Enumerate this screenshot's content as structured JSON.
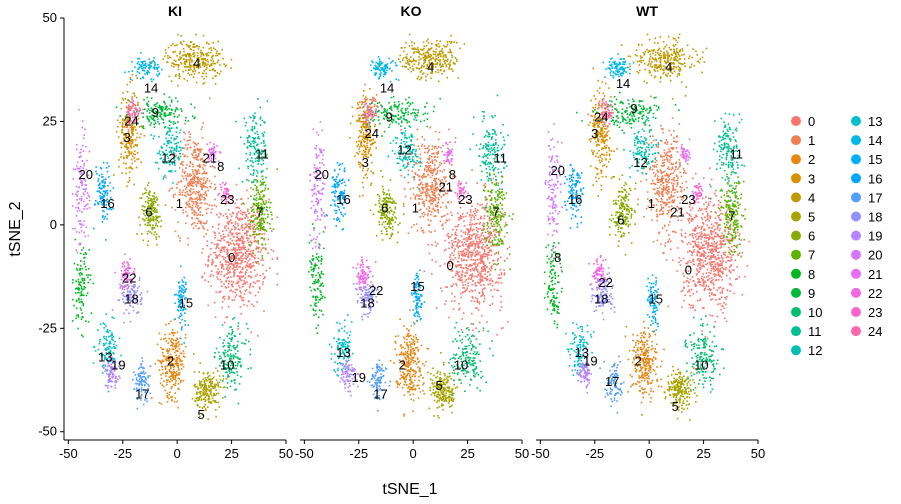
{
  "chart_data": {
    "type": "scatter",
    "xlabel": "tSNE_1",
    "ylabel": "tSNE_2",
    "xlim": [
      -52,
      50
    ],
    "ylim": [
      -52,
      50
    ],
    "x_ticks": [
      -50,
      -25,
      0,
      25,
      50
    ],
    "y_ticks": [
      -50,
      -25,
      0,
      25,
      50
    ],
    "x_tick_labels": [
      "-50",
      "-25",
      "0",
      "25",
      "50"
    ],
    "y_tick_labels": [
      "-50",
      "-25",
      "0",
      "25",
      "50"
    ],
    "grid": false,
    "legend_placement": "right",
    "legend_columns": 2,
    "panels": [
      {
        "title": "KI"
      },
      {
        "title": "KO"
      },
      {
        "title": "WT"
      }
    ],
    "clusters": [
      {
        "name": "0",
        "color": "#F8766D",
        "center": [
          28,
          -7
        ],
        "spread": [
          11,
          11
        ],
        "n": 700
      },
      {
        "name": "1",
        "color": "#F07E4F",
        "center": [
          8,
          10
        ],
        "spread": [
          7,
          10
        ],
        "n": 380
      },
      {
        "name": "2",
        "color": "#E68613",
        "center": [
          -2,
          -33
        ],
        "spread": [
          5,
          7
        ],
        "n": 260
      },
      {
        "name": "3",
        "color": "#D89000",
        "center": [
          -22,
          22
        ],
        "spread": [
          4,
          9
        ],
        "n": 230
      },
      {
        "name": "4",
        "color": "#C09B00",
        "center": [
          8,
          40
        ],
        "spread": [
          11,
          4
        ],
        "n": 280
      },
      {
        "name": "5",
        "color": "#A9A400",
        "center": [
          14,
          -40
        ],
        "spread": [
          5,
          4
        ],
        "n": 200
      },
      {
        "name": "6",
        "color": "#8AAB00",
        "center": [
          -12,
          3
        ],
        "spread": [
          4,
          5
        ],
        "n": 170
      },
      {
        "name": "7",
        "color": "#5BB300",
        "center": [
          38,
          3
        ],
        "spread": [
          4,
          8
        ],
        "n": 190
      },
      {
        "name": "8",
        "color": "#00B81F",
        "center": [
          -44,
          -15
        ],
        "spread": [
          3,
          8
        ],
        "n": 110
      },
      {
        "name": "9",
        "color": "#00BA38",
        "center": [
          -8,
          27
        ],
        "spread": [
          12,
          3
        ],
        "n": 160
      },
      {
        "name": "10",
        "color": "#00BE70",
        "center": [
          25,
          -32
        ],
        "spread": [
          6,
          6
        ],
        "n": 160
      },
      {
        "name": "11",
        "color": "#00BF93",
        "center": [
          36,
          18
        ],
        "spread": [
          5,
          7
        ],
        "n": 150
      },
      {
        "name": "12",
        "color": "#00C0B2",
        "center": [
          -3,
          18
        ],
        "spread": [
          5,
          5
        ],
        "n": 120
      },
      {
        "name": "13",
        "color": "#00BECD",
        "center": [
          -32,
          -30
        ],
        "spread": [
          4,
          5
        ],
        "n": 110
      },
      {
        "name": "14",
        "color": "#00B8E5",
        "center": [
          -14,
          38
        ],
        "spread": [
          5,
          2
        ],
        "n": 90
      },
      {
        "name": "15",
        "color": "#00ADFA",
        "center": [
          2,
          -18
        ],
        "spread": [
          2,
          5
        ],
        "n": 90
      },
      {
        "name": "16",
        "color": "#00A5FF",
        "center": [
          -34,
          8
        ],
        "spread": [
          3,
          6
        ],
        "n": 110
      },
      {
        "name": "17",
        "color": "#529EFF",
        "center": [
          -16,
          -38
        ],
        "spread": [
          3,
          4
        ],
        "n": 90
      },
      {
        "name": "18",
        "color": "#9590FF",
        "center": [
          -21,
          -17
        ],
        "spread": [
          4,
          4
        ],
        "n": 110
      },
      {
        "name": "19",
        "color": "#B983FF",
        "center": [
          -30,
          -36
        ],
        "spread": [
          3,
          3
        ],
        "n": 80
      },
      {
        "name": "20",
        "color": "#D575FE",
        "center": [
          -44,
          8
        ],
        "spread": [
          3,
          12
        ],
        "n": 120
      },
      {
        "name": "21",
        "color": "#E76BF3",
        "center": [
          16,
          17
        ],
        "spread": [
          2,
          2
        ],
        "n": 40
      },
      {
        "name": "22",
        "color": "#F464E5",
        "center": [
          -23,
          -12
        ],
        "spread": [
          3,
          3
        ],
        "n": 70
      },
      {
        "name": "23",
        "color": "#FD61D1",
        "center": [
          22,
          8
        ],
        "spread": [
          2,
          2
        ],
        "n": 40
      },
      {
        "name": "24",
        "color": "#FF65AE",
        "center": [
          -20,
          27
        ],
        "spread": [
          3,
          3
        ],
        "n": 60
      }
    ],
    "point_labels": [
      [
        {
          "text": "0",
          "x": 25,
          "y": -8
        },
        {
          "text": "1",
          "x": 1,
          "y": 5
        },
        {
          "text": "2",
          "x": -3,
          "y": -33
        },
        {
          "text": "3",
          "x": -23,
          "y": 21
        },
        {
          "text": "4",
          "x": 9,
          "y": 39
        },
        {
          "text": "5",
          "x": 11,
          "y": -46
        },
        {
          "text": "6",
          "x": -13,
          "y": 3
        },
        {
          "text": "7",
          "x": 38,
          "y": 3
        },
        {
          "text": "8",
          "x": 20,
          "y": 14
        },
        {
          "text": "9",
          "x": -10,
          "y": 27
        },
        {
          "text": "10",
          "x": 23,
          "y": -34
        },
        {
          "text": "11",
          "x": 39,
          "y": 17
        },
        {
          "text": "12",
          "x": -4,
          "y": 16
        },
        {
          "text": "13",
          "x": -33,
          "y": -32
        },
        {
          "text": "14",
          "x": -12,
          "y": 33
        },
        {
          "text": "15",
          "x": 4,
          "y": -19
        },
        {
          "text": "16",
          "x": -32,
          "y": 5
        },
        {
          "text": "17",
          "x": -16,
          "y": -41
        },
        {
          "text": "18",
          "x": -21,
          "y": -18
        },
        {
          "text": "19",
          "x": -27,
          "y": -34
        },
        {
          "text": "20",
          "x": -42,
          "y": 12
        },
        {
          "text": "21",
          "x": 15,
          "y": 16
        },
        {
          "text": "22",
          "x": -22,
          "y": -13
        },
        {
          "text": "23",
          "x": 23,
          "y": 6
        },
        {
          "text": "24",
          "x": -21,
          "y": 25
        }
      ],
      [
        {
          "text": "0",
          "x": 17,
          "y": -10
        },
        {
          "text": "1",
          "x": 1,
          "y": 4
        },
        {
          "text": "2",
          "x": -5,
          "y": -34
        },
        {
          "text": "3",
          "x": -22,
          "y": 15
        },
        {
          "text": "4",
          "x": 8,
          "y": 38
        },
        {
          "text": "5",
          "x": 12,
          "y": -39
        },
        {
          "text": "6",
          "x": -13,
          "y": 4
        },
        {
          "text": "7",
          "x": 38,
          "y": 3
        },
        {
          "text": "8",
          "x": 18,
          "y": 12
        },
        {
          "text": "9",
          "x": -11,
          "y": 26
        },
        {
          "text": "10",
          "x": 22,
          "y": -34
        },
        {
          "text": "11",
          "x": 40,
          "y": 16
        },
        {
          "text": "12",
          "x": -4,
          "y": 18
        },
        {
          "text": "13",
          "x": -32,
          "y": -31
        },
        {
          "text": "14",
          "x": -12,
          "y": 33
        },
        {
          "text": "15",
          "x": 2,
          "y": -15
        },
        {
          "text": "16",
          "x": -32,
          "y": 6
        },
        {
          "text": "17",
          "x": -15,
          "y": -41
        },
        {
          "text": "18",
          "x": -21,
          "y": -19
        },
        {
          "text": "19",
          "x": -25,
          "y": -37
        },
        {
          "text": "20",
          "x": -42,
          "y": 12
        },
        {
          "text": "21",
          "x": 15,
          "y": 9
        },
        {
          "text": "22",
          "x": -17,
          "y": -16
        },
        {
          "text": "23",
          "x": 24,
          "y": 6
        },
        {
          "text": "24",
          "x": -19,
          "y": 22
        }
      ],
      [
        {
          "text": "0",
          "x": 18,
          "y": -11
        },
        {
          "text": "1",
          "x": 1,
          "y": 5
        },
        {
          "text": "2",
          "x": -5,
          "y": -33
        },
        {
          "text": "3",
          "x": -25,
          "y": 22
        },
        {
          "text": "4",
          "x": 9,
          "y": 38
        },
        {
          "text": "5",
          "x": 12,
          "y": -44
        },
        {
          "text": "6",
          "x": -13,
          "y": 1
        },
        {
          "text": "7",
          "x": 38,
          "y": 2
        },
        {
          "text": "8",
          "x": -42,
          "y": -8
        },
        {
          "text": "9",
          "x": -7,
          "y": 28
        },
        {
          "text": "10",
          "x": 24,
          "y": -34
        },
        {
          "text": "11",
          "x": 40,
          "y": 17
        },
        {
          "text": "12",
          "x": -4,
          "y": 15
        },
        {
          "text": "13",
          "x": -31,
          "y": -31
        },
        {
          "text": "14",
          "x": -12,
          "y": 34
        },
        {
          "text": "15",
          "x": 3,
          "y": -18
        },
        {
          "text": "16",
          "x": -34,
          "y": 6
        },
        {
          "text": "17",
          "x": -17,
          "y": -38
        },
        {
          "text": "18",
          "x": -22,
          "y": -18
        },
        {
          "text": "19",
          "x": -27,
          "y": -33
        },
        {
          "text": "20",
          "x": -42,
          "y": 13
        },
        {
          "text": "21",
          "x": 13,
          "y": 3
        },
        {
          "text": "22",
          "x": -20,
          "y": -14
        },
        {
          "text": "23",
          "x": 18,
          "y": 6
        },
        {
          "text": "24",
          "x": -22,
          "y": 26
        }
      ]
    ]
  }
}
